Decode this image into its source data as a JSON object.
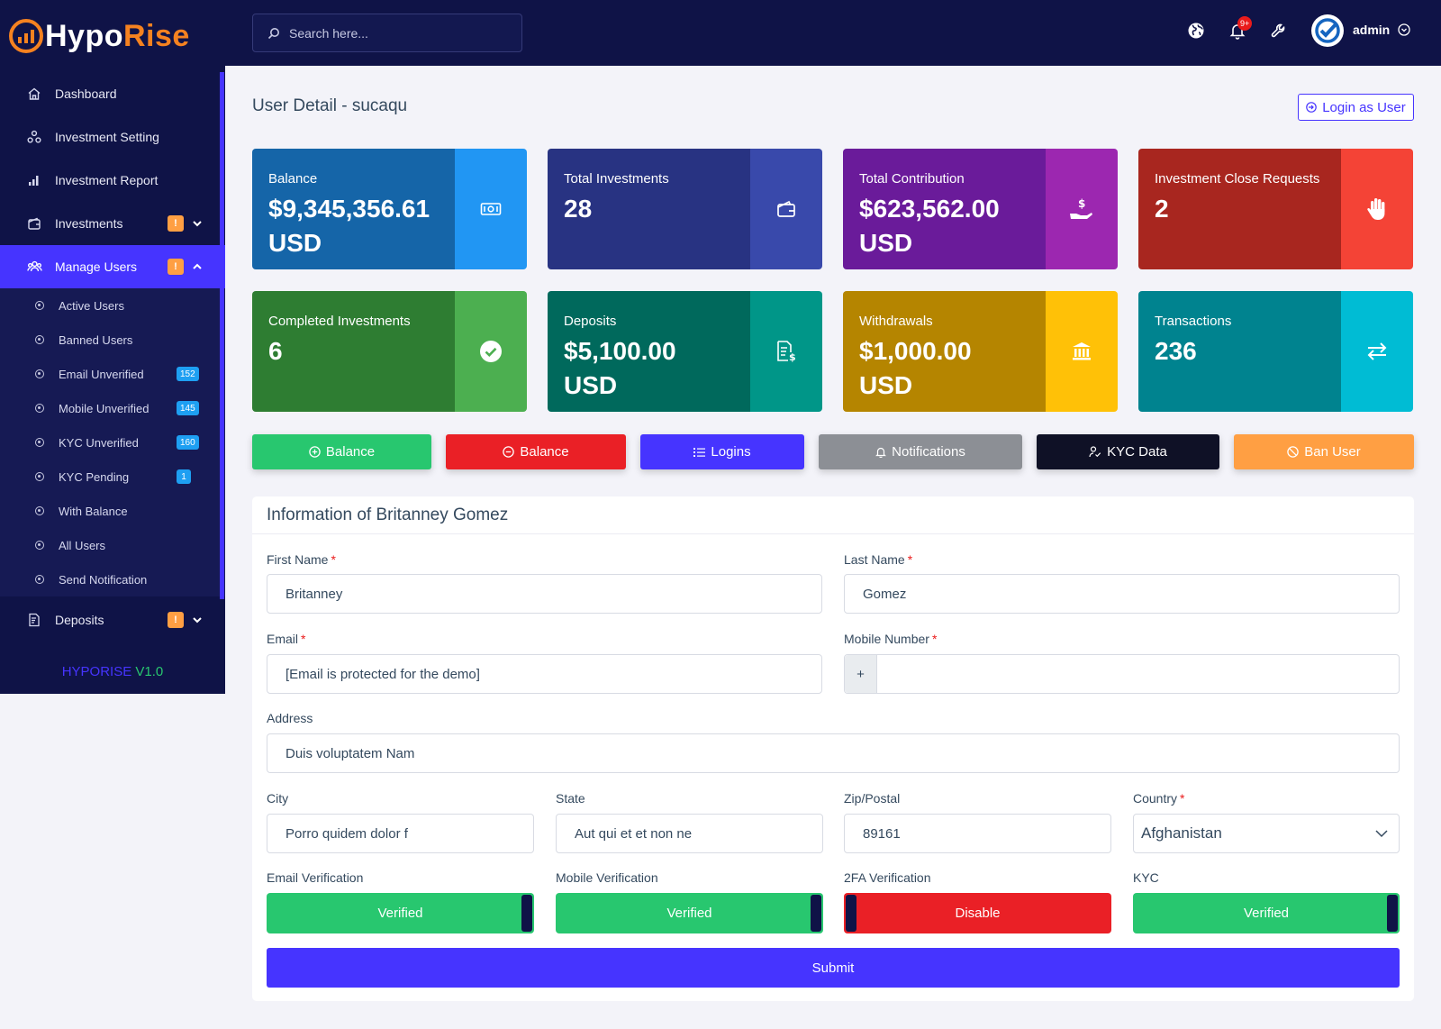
{
  "brand": {
    "name_white": "Hypo",
    "name_orange": "Rise",
    "version_name": "HYPORISE",
    "version_num": "V1.0"
  },
  "colors": {
    "sidebar": "#0f1347",
    "primary": "#4634ff",
    "success": "#28c76f",
    "danger": "#ea1b1b",
    "warning": "#ff9f43",
    "dark": "#0f1347",
    "secondary": "#8c8f95"
  },
  "sidebar": {
    "items": [
      {
        "label": "Dashboard",
        "icon": "home-icon"
      },
      {
        "label": "Investment Setting",
        "icon": "settings-nodes-icon"
      },
      {
        "label": "Investment Report",
        "icon": "bar-chart-icon"
      },
      {
        "label": "Investments",
        "icon": "wallet-icon",
        "badge": "!"
      },
      {
        "label": "Manage Users",
        "icon": "users-icon",
        "badge": "!"
      }
    ],
    "sub_items": [
      {
        "label": "Active Users"
      },
      {
        "label": "Banned Users"
      },
      {
        "label": "Email Unverified",
        "count": "152"
      },
      {
        "label": "Mobile Unverified",
        "count": "145"
      },
      {
        "label": "KYC Unverified",
        "count": "160"
      },
      {
        "label": "KYC Pending",
        "count": "1"
      },
      {
        "label": "With Balance"
      },
      {
        "label": "All Users"
      },
      {
        "label": "Send Notification"
      }
    ],
    "deposits": {
      "label": "Deposits",
      "badge": "!",
      "icon": "invoice-icon"
    }
  },
  "topbar": {
    "search_placeholder": "Search here...",
    "notif_count": "9+",
    "user": "admin"
  },
  "page": {
    "title": "User Detail - sucaqu",
    "login_as": "Login as User"
  },
  "cards": [
    {
      "label": "Balance",
      "value": "$9,345,356.61 USD",
      "icon": "money-bill-icon"
    },
    {
      "label": "Total Investments",
      "value": "28",
      "icon": "wallet-icon"
    },
    {
      "label": "Total Contribution",
      "value": "$623,562.00 USD",
      "icon": "hand-dollar-icon"
    },
    {
      "label": "Investment Close Requests",
      "value": "2",
      "icon": "hand-stop-icon"
    },
    {
      "label": "Completed Investments",
      "value": "6",
      "icon": "check-circle-icon"
    },
    {
      "label": "Deposits",
      "value": "$5,100.00 USD",
      "icon": "invoice-dollar-icon"
    },
    {
      "label": "Withdrawals",
      "value": "$1,000.00 USD",
      "icon": "bank-icon"
    },
    {
      "label": "Transactions",
      "value": "236",
      "icon": "exchange-icon"
    }
  ],
  "actions": [
    {
      "label": "Balance",
      "icon": "plus-circle-icon"
    },
    {
      "label": "Balance",
      "icon": "minus-circle-icon"
    },
    {
      "label": "Logins",
      "icon": "list-icon"
    },
    {
      "label": "Notifications",
      "icon": "bell-icon"
    },
    {
      "label": "KYC Data",
      "icon": "user-check-icon"
    },
    {
      "label": "Ban User",
      "icon": "ban-icon"
    }
  ],
  "form": {
    "heading": "Information of Britanney Gomez",
    "first_name": {
      "label": "First Name",
      "value": "Britanney"
    },
    "last_name": {
      "label": "Last Name",
      "value": "Gomez"
    },
    "email": {
      "label": "Email",
      "value": "[Email is protected for the demo]"
    },
    "mobile": {
      "label": "Mobile Number",
      "prefix": "+",
      "value": ""
    },
    "address": {
      "label": "Address",
      "value": "Duis voluptatem Nam"
    },
    "city": {
      "label": "City",
      "value": "Porro quidem dolor f"
    },
    "state": {
      "label": "State",
      "value": "Aut qui et et non ne"
    },
    "zip": {
      "label": "Zip/Postal",
      "value": "89161"
    },
    "country": {
      "label": "Country",
      "value": "Afghanistan"
    },
    "email_verification": {
      "label": "Email Verification",
      "state": "Verified"
    },
    "mobile_verification": {
      "label": "Mobile Verification",
      "state": "Verified"
    },
    "twofa_verification": {
      "label": "2FA Verification",
      "state": "Disable"
    },
    "kyc": {
      "label": "KYC",
      "state": "Verified"
    },
    "submit": "Submit"
  }
}
